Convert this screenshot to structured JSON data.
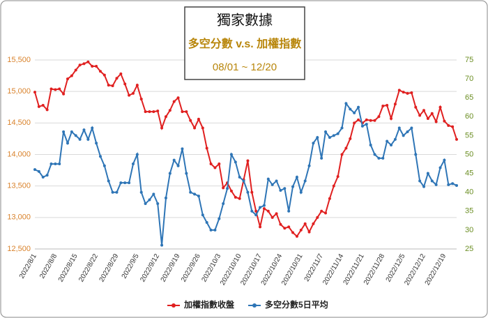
{
  "chart_data": {
    "type": "line",
    "title": "獨家數據",
    "subtitle": "多空分數 v.s. 加權指數",
    "date_range": "08/01 ~ 12/20",
    "categories": [
      "2022/8/1",
      null,
      null,
      null,
      null,
      "2022/8/8",
      null,
      null,
      null,
      null,
      "2022/8/15",
      null,
      null,
      null,
      null,
      "2022/8/22",
      null,
      null,
      null,
      null,
      "2022/8/29",
      null,
      null,
      null,
      null,
      "2022/9/5",
      null,
      null,
      null,
      null,
      "2022/9/12",
      null,
      null,
      null,
      null,
      "2022/9/19",
      null,
      null,
      null,
      null,
      "2022/9/26",
      null,
      null,
      null,
      null,
      "2022/10/3",
      null,
      null,
      null,
      null,
      "2022/10/10",
      null,
      null,
      null,
      null,
      "2022/10/17",
      null,
      null,
      null,
      null,
      "2022/10/24",
      null,
      null,
      null,
      null,
      "2022/10/31",
      null,
      null,
      null,
      null,
      "2022/11/7",
      null,
      null,
      null,
      null,
      "2022/11/14",
      null,
      null,
      null,
      null,
      "2022/11/21",
      null,
      null,
      null,
      null,
      "2022/11/28",
      null,
      null,
      null,
      null,
      "2022/12/5",
      null,
      null,
      null,
      null,
      "2022/12/12",
      null,
      null,
      null,
      null,
      "2022/12/19",
      null,
      null,
      null
    ],
    "series": [
      {
        "name": "加權指數收盤",
        "color": "#e02020",
        "values": [
          14990,
          14760,
          14780,
          14710,
          15040,
          15030,
          15040,
          14960,
          15200,
          15250,
          15340,
          15420,
          15440,
          15470,
          15400,
          15400,
          15320,
          15260,
          15100,
          15090,
          15210,
          15280,
          15120,
          14940,
          14970,
          15100,
          14880,
          14680,
          14680,
          14680,
          14690,
          14420,
          14600,
          14700,
          14840,
          14900,
          14680,
          14680,
          14540,
          14420,
          14560,
          14420,
          14100,
          13850,
          13790,
          13850,
          13470,
          13550,
          13420,
          13320,
          13300,
          13600,
          13900,
          13400,
          13100,
          12850,
          13140,
          13100,
          13000,
          13060,
          12890,
          12830,
          12850,
          12760,
          12700,
          12800,
          12900,
          12770,
          12900,
          13000,
          13100,
          13070,
          13300,
          13500,
          13650,
          14000,
          14100,
          14250,
          14500,
          14550,
          14500,
          14550,
          14540,
          14540,
          14600,
          14770,
          14780,
          14570,
          14800,
          15020,
          14990,
          14970,
          14980,
          14750,
          14620,
          14700,
          14570,
          14650,
          14520,
          14750,
          14530,
          14460,
          14440,
          14240
        ]
      },
      {
        "name": "多空分數5日平均",
        "color": "#2e75b6",
        "axis": "y2",
        "values": [
          46,
          45.5,
          44,
          44.5,
          47.5,
          47.5,
          47.5,
          56,
          53,
          56,
          55,
          54,
          56.5,
          54,
          57,
          53,
          49.5,
          47,
          43,
          40,
          40,
          42.5,
          42.5,
          42.5,
          47.5,
          50,
          40,
          37,
          38,
          39.5,
          37,
          26,
          38.5,
          45,
          48.5,
          47,
          51.5,
          45,
          40,
          39.5,
          39,
          34,
          32,
          30,
          30,
          33,
          37,
          41,
          50,
          48,
          44,
          43,
          40,
          35,
          34,
          36,
          36.5,
          43.5,
          42,
          43,
          40.5,
          41,
          35,
          41.5,
          44,
          40,
          43,
          47,
          53,
          54.5,
          49,
          56,
          54.5,
          55,
          55.5,
          57,
          63.5,
          62,
          61,
          62.5,
          57.5,
          58,
          52.5,
          50,
          49,
          49,
          53.5,
          52.5,
          54,
          57,
          55,
          56,
          57,
          50,
          43,
          41.5,
          45,
          43,
          42,
          46.5,
          48.5,
          42,
          42.3,
          41.8
        ]
      }
    ],
    "ylim": [
      12500,
      15500
    ],
    "yticks": [
      {
        "value": 12500,
        "label": "12,500"
      },
      {
        "value": 13000,
        "label": "13,000"
      },
      {
        "value": 13500,
        "label": "13,500"
      },
      {
        "value": 14000,
        "label": "14,000"
      },
      {
        "value": 14500,
        "label": "14,500"
      },
      {
        "value": 15000,
        "label": "15,000"
      },
      {
        "value": 15500,
        "label": "15,500"
      }
    ],
    "y2lim": [
      25,
      75
    ],
    "y2ticks": [
      25,
      30,
      35,
      40,
      45,
      50,
      55,
      60,
      65,
      70,
      75
    ],
    "grid": true,
    "legend": "bottom"
  }
}
